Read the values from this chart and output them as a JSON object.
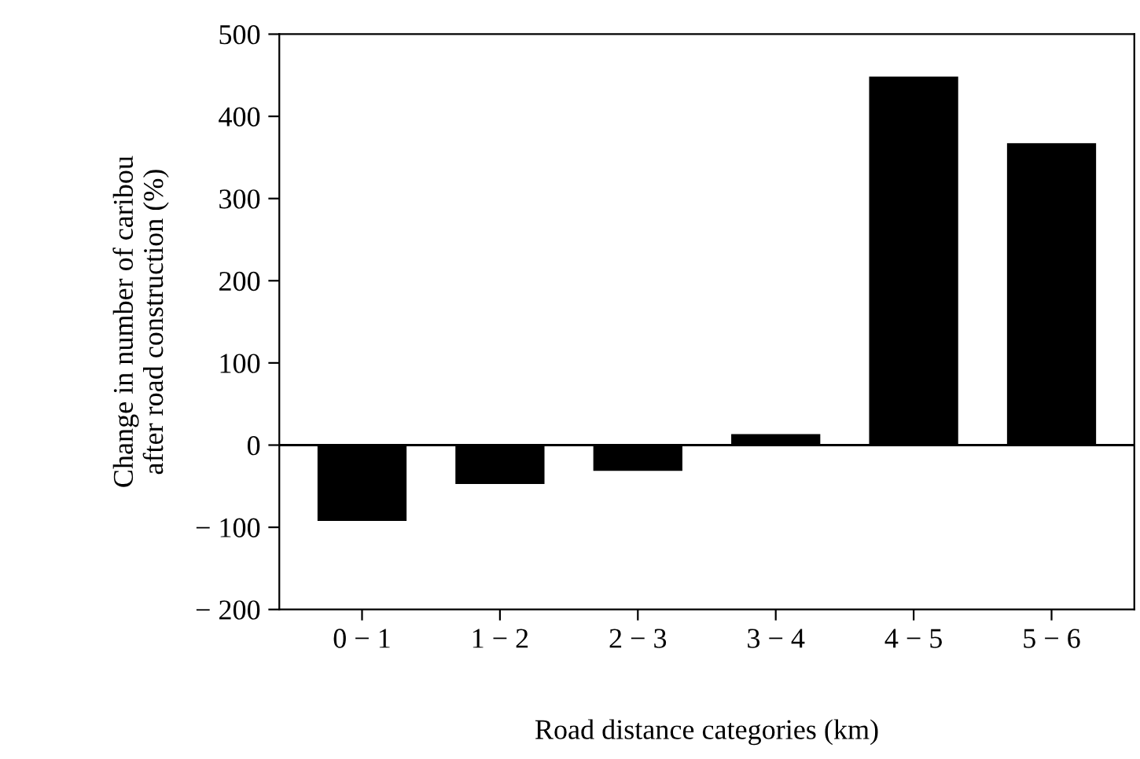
{
  "chart_data": {
    "type": "bar",
    "xlabel": "Road distance categories (km)",
    "ylabel": "Change in number of caribou\nafter road construction (%)",
    "categories": [
      "0 − 1",
      "1 − 2",
      "2 − 3",
      "3 − 4",
      "4 − 5",
      "5 − 6"
    ],
    "values": [
      -91,
      -46,
      -30,
      12,
      447,
      366
    ],
    "color": "#000000",
    "ylim": [
      -200,
      500
    ],
    "yticks": [
      {
        "value": -200,
        "label": "− 200"
      },
      {
        "value": -100,
        "label": "− 100"
      },
      0,
      100,
      200,
      300,
      400,
      500
    ],
    "ref_lines": [
      {
        "axis": "y",
        "value": 0,
        "label": null,
        "color": "#000000"
      }
    ],
    "grid": false,
    "legend": false
  }
}
